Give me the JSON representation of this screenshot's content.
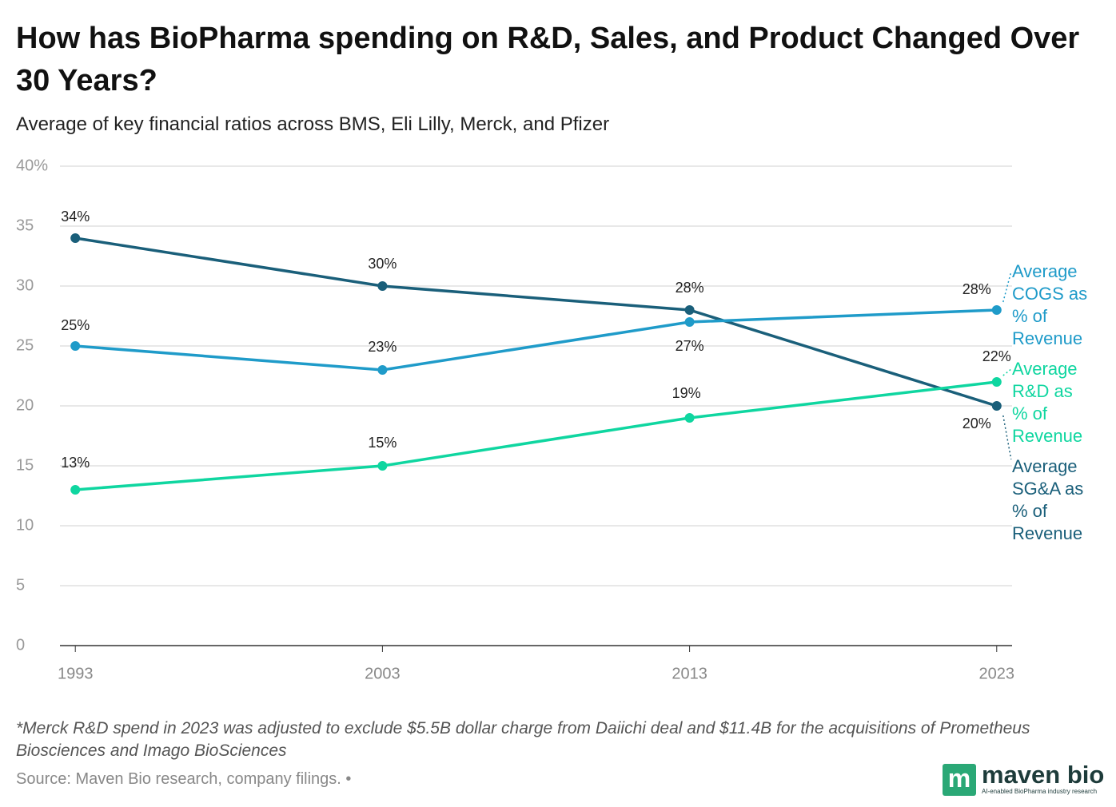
{
  "chart_data": {
    "type": "line",
    "title": "How has BioPharma spending on R&D, Sales, and Product Changed Over 30 Years?",
    "subtitle": "Average of key financial ratios across BMS, Eli Lilly, Merck, and Pfizer",
    "x": [
      1993,
      2003,
      2013,
      2023
    ],
    "xlim": [
      1992.5,
      2023.5
    ],
    "xticks": [
      1993,
      2003,
      2013,
      2023
    ],
    "ylim": [
      0,
      40
    ],
    "yticks": [
      0,
      5,
      10,
      15,
      20,
      25,
      30,
      35,
      {
        "value": 40,
        "label": "40%"
      }
    ],
    "grid": true,
    "series": [
      {
        "name": "Average SG&A as % of Revenue",
        "color": "#1a5f7a",
        "values": [
          34,
          30,
          28,
          20
        ],
        "value_labels": [
          "34%",
          "30%",
          "28%",
          "20%"
        ]
      },
      {
        "name": "Average COGS as % of Revenue",
        "color": "#1f9bc9",
        "values": [
          25,
          23,
          27,
          28
        ],
        "value_labels": [
          "25%",
          "23%",
          "27%",
          "28%"
        ]
      },
      {
        "name": "Average R&D as % of Revenue",
        "color": "#0fd6a0",
        "values": [
          13,
          15,
          19,
          22
        ],
        "value_labels": [
          "13%",
          "15%",
          "19%",
          "22%"
        ]
      }
    ],
    "footnote": "*Merck R&D spend in 2023 was adjusted to exclude $5.5B dollar charge from Daiichi deal and $11.4B for the acquisitions of Prometheus Biosciences and Imago BioSciences",
    "source": "Source: Maven Bio research, company filings. •",
    "logo": {
      "mark": "m",
      "name": "maven bio",
      "tagline": "AI-enabled BioPharma industry research"
    }
  }
}
